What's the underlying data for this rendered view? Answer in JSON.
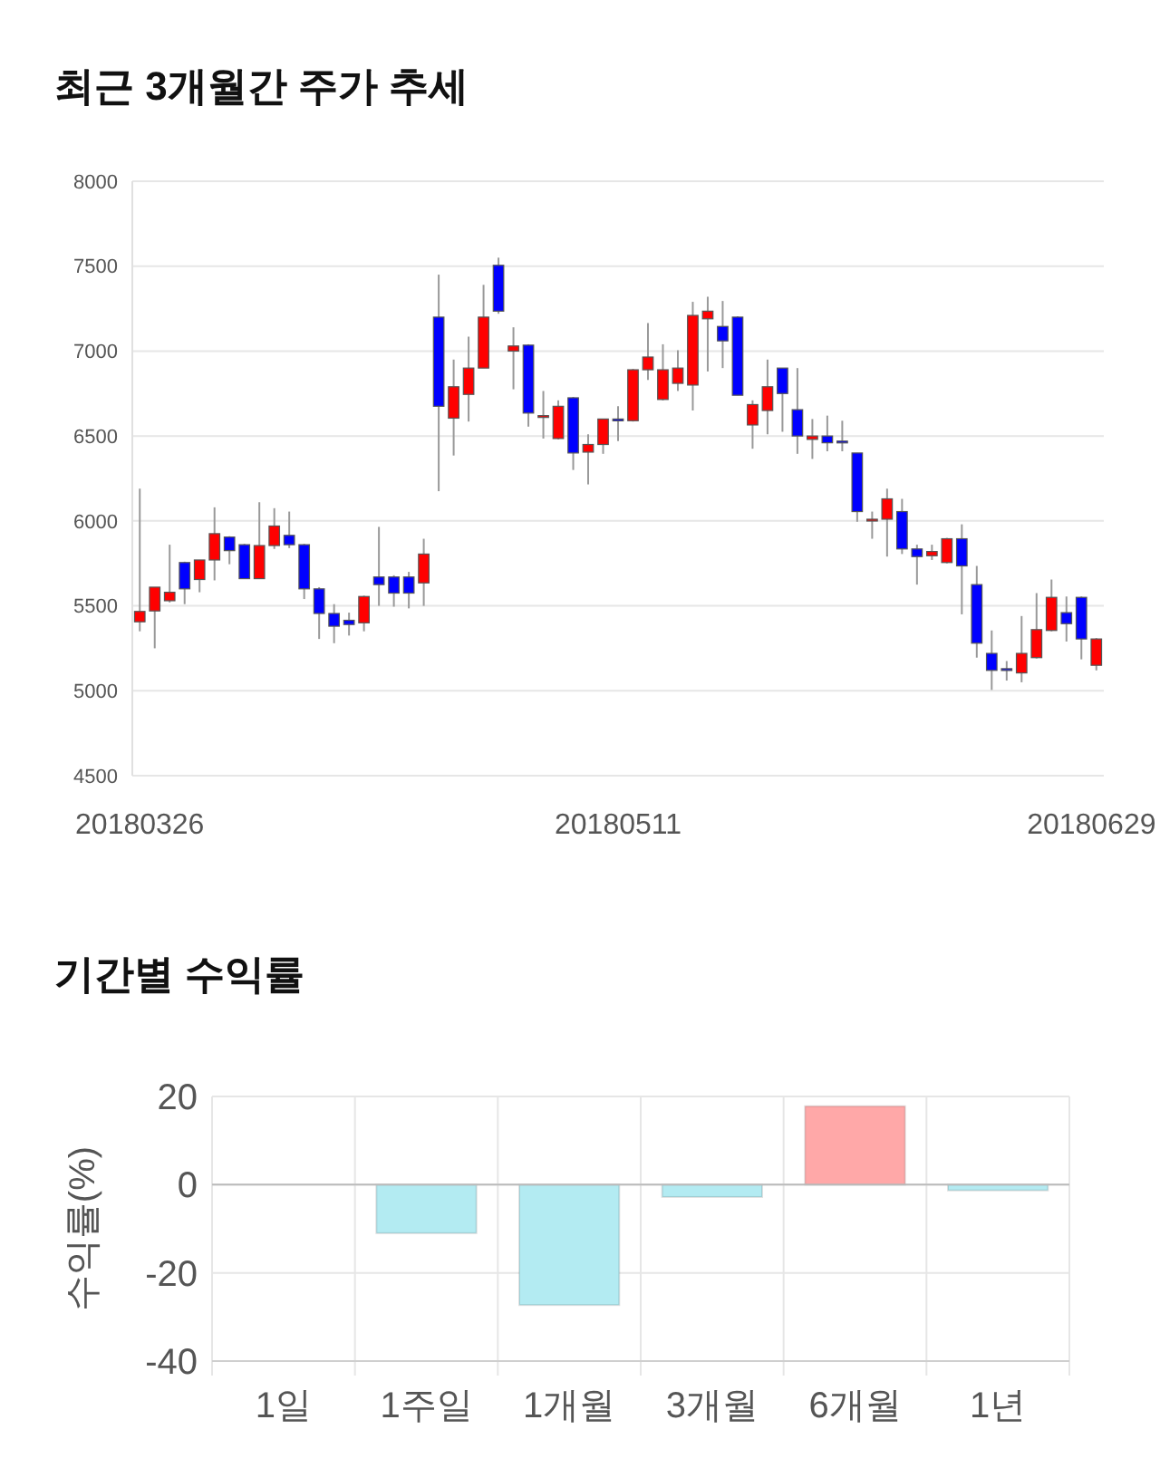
{
  "chart_data": [
    {
      "type": "candlestick",
      "title": "최근 3개월간 주가 추세",
      "categories": [
        "20180326",
        null,
        null,
        null,
        null,
        null,
        null,
        null,
        null,
        null,
        null,
        null,
        null,
        null,
        null,
        null,
        null,
        null,
        null,
        null,
        null,
        null,
        null,
        null,
        null,
        null,
        null,
        null,
        null,
        null,
        null,
        null,
        "20180511",
        null,
        null,
        null,
        null,
        null,
        null,
        null,
        null,
        null,
        null,
        null,
        null,
        null,
        null,
        null,
        null,
        null,
        null,
        null,
        null,
        null,
        null,
        null,
        null,
        null,
        null,
        null,
        null,
        null,
        null,
        null,
        "20180629"
      ],
      "ohlc": [
        [
          5406,
          6190,
          5350,
          5467
        ],
        [
          5470,
          5610,
          5250,
          5610
        ],
        [
          5530,
          5860,
          5520,
          5580
        ],
        [
          5755,
          5760,
          5510,
          5600
        ],
        [
          5655,
          5770,
          5580,
          5770
        ],
        [
          5770,
          6080,
          5650,
          5925
        ],
        [
          5905,
          5910,
          5745,
          5825
        ],
        [
          5860,
          5865,
          5660,
          5660
        ],
        [
          5660,
          6110,
          5660,
          5855
        ],
        [
          5855,
          6075,
          5835,
          5970
        ],
        [
          5915,
          6055,
          5840,
          5860
        ],
        [
          5860,
          5865,
          5540,
          5600
        ],
        [
          5600,
          5610,
          5305,
          5455
        ],
        [
          5455,
          5510,
          5280,
          5380
        ],
        [
          5415,
          5460,
          5325,
          5390
        ],
        [
          5400,
          5560,
          5350,
          5555
        ],
        [
          5670,
          5965,
          5500,
          5625
        ],
        [
          5670,
          5680,
          5495,
          5575
        ],
        [
          5670,
          5700,
          5485,
          5575
        ],
        [
          5635,
          5895,
          5500,
          5805
        ],
        [
          7200,
          7450,
          6175,
          6675
        ],
        [
          6605,
          6950,
          6385,
          6790
        ],
        [
          6745,
          7085,
          6585,
          6900
        ],
        [
          6900,
          7390,
          6900,
          7200
        ],
        [
          7505,
          7550,
          7220,
          7235
        ],
        [
          7000,
          7140,
          6775,
          7030
        ],
        [
          7035,
          7040,
          6555,
          6635
        ],
        [
          6610,
          6765,
          6485,
          6620
        ],
        [
          6485,
          6710,
          6480,
          6675
        ],
        [
          6725,
          6730,
          6300,
          6400
        ],
        [
          6405,
          6510,
          6215,
          6450
        ],
        [
          6450,
          6600,
          6395,
          6600
        ],
        [
          6600,
          6675,
          6470,
          6595
        ],
        [
          6590,
          6895,
          6585,
          6890
        ],
        [
          6890,
          7165,
          6830,
          6965
        ],
        [
          6715,
          7040,
          6710,
          6890
        ],
        [
          6810,
          7005,
          6765,
          6900
        ],
        [
          6800,
          7290,
          6650,
          7210
        ],
        [
          7190,
          7320,
          6880,
          7235
        ],
        [
          7145,
          7295,
          6900,
          7060
        ],
        [
          7200,
          7205,
          6740,
          6740
        ],
        [
          6565,
          6710,
          6425,
          6685
        ],
        [
          6650,
          6950,
          6510,
          6790
        ],
        [
          6900,
          6900,
          6525,
          6750
        ],
        [
          6655,
          6900,
          6395,
          6500
        ],
        [
          6480,
          6600,
          6365,
          6500
        ],
        [
          6500,
          6620,
          6410,
          6460
        ],
        [
          6470,
          6590,
          6410,
          6465
        ],
        [
          6400,
          6400,
          5995,
          6055
        ],
        [
          6005,
          6055,
          5895,
          6010
        ],
        [
          6010,
          6190,
          5790,
          6130
        ],
        [
          6055,
          6130,
          5805,
          5835
        ],
        [
          5835,
          5860,
          5625,
          5790
        ],
        [
          5795,
          5860,
          5770,
          5820
        ],
        [
          5755,
          5900,
          5750,
          5895
        ],
        [
          5895,
          5980,
          5450,
          5735
        ],
        [
          5625,
          5735,
          5195,
          5280
        ],
        [
          5220,
          5355,
          5005,
          5120
        ],
        [
          5130,
          5175,
          5060,
          5125
        ],
        [
          5105,
          5440,
          5050,
          5220
        ],
        [
          5195,
          5575,
          5190,
          5360
        ],
        [
          5355,
          5655,
          5350,
          5550
        ],
        [
          5460,
          5555,
          5290,
          5395
        ],
        [
          5550,
          5555,
          5185,
          5305
        ],
        [
          5150,
          5310,
          5120,
          5305
        ]
      ],
      "colors": [
        "#ff0000",
        "#ff0000",
        "#ff0000",
        "#0000ff",
        "#ff0000",
        "#ff0000",
        "#0000ff",
        "#0000ff",
        "#ff0000",
        "#ff0000",
        "#0000ff",
        "#0000ff",
        "#0000ff",
        "#0000ff",
        "#0000ff",
        "#ff0000",
        "#0000ff",
        "#0000ff",
        "#0000ff",
        "#ff0000",
        "#0000ff",
        "#ff0000",
        "#ff0000",
        "#ff0000",
        "#0000ff",
        "#ff0000",
        "#0000ff",
        "#ff0000",
        "#ff0000",
        "#0000ff",
        "#ff0000",
        "#ff0000",
        "#0000ff",
        "#ff0000",
        "#ff0000",
        "#ff0000",
        "#ff0000",
        "#ff0000",
        "#ff0000",
        "#0000ff",
        "#0000ff",
        "#ff0000",
        "#ff0000",
        "#0000ff",
        "#0000ff",
        "#ff0000",
        "#0000ff",
        "#0000ff",
        "#0000ff",
        "#ff0000",
        "#ff0000",
        "#0000ff",
        "#0000ff",
        "#ff0000",
        "#ff0000",
        "#0000ff",
        "#0000ff",
        "#0000ff",
        "#0000ff",
        "#ff0000",
        "#ff0000",
        "#ff0000",
        "#0000ff",
        "#0000ff",
        "#ff0000"
      ],
      "ylim": [
        4500,
        8000
      ],
      "yticks": [
        4500,
        5000,
        5500,
        6000,
        6500,
        7000,
        7500,
        8000
      ],
      "grid": "y"
    },
    {
      "type": "bar",
      "title": "기간별 수익률",
      "ylabel": "수익률(%)",
      "categories": [
        "1일",
        "1주일",
        "1개월",
        "3개월",
        "6개월",
        "1년"
      ],
      "values": [
        0,
        -11.0,
        -27.3,
        -2.8,
        17.8,
        -1.3
      ],
      "colors": [
        "#b3ebf2",
        "#b3ebf2",
        "#b3ebf2",
        "#b3ebf2",
        "#ffa8a8",
        "#b3ebf2"
      ],
      "ylim": [
        -40,
        20
      ],
      "yticks": [
        -40,
        -20,
        0,
        20
      ],
      "grid": true
    }
  ]
}
